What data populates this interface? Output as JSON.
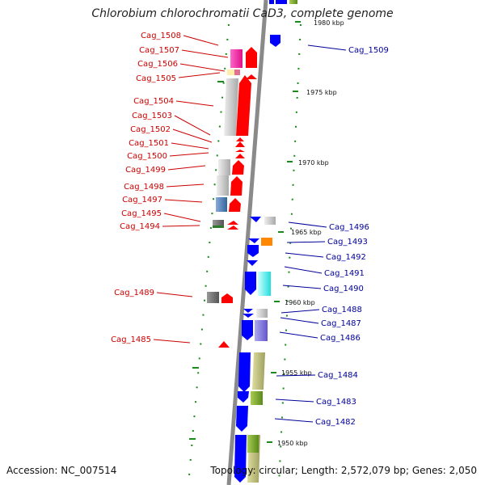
{
  "title": "Chlorobium chlorochromatii CaD3, complete genome",
  "footer": {
    "accession": "Accession: NC_007514",
    "summary": "Topology: circular; Length: 2,572,079 bp; Genes: 2,050"
  },
  "ticks": [
    "1980 kbp",
    "1975 kbp",
    "1970 kbp",
    "1965 kbp",
    "1960 kbp",
    "1955 kbp",
    "1950 kbp"
  ],
  "left_labels": [
    "Cag_1508",
    "Cag_1507",
    "Cag_1506",
    "Cag_1505",
    "Cag_1504",
    "Cag_1503",
    "Cag_1502",
    "Cag_1501",
    "Cag_1500",
    "Cag_1499",
    "Cag_1498",
    "Cag_1497",
    "Cag_1495",
    "Cag_1494",
    "Cag_1489",
    "Cag_1485"
  ],
  "right_labels": [
    "Cag_1509",
    "Cag_1496",
    "Cag_1493",
    "Cag_1492",
    "Cag_1491",
    "Cag_1490",
    "Cag_1488",
    "Cag_1487",
    "Cag_1486",
    "Cag_1484",
    "Cag_1483",
    "Cag_1482"
  ],
  "colors": {
    "forward_cds": "#ff0000",
    "reverse_cds": "#0000ff",
    "left_label": "#cc0000",
    "right_label": "#000099",
    "backbone": "#8a8a8a",
    "tick": "#1a8a1a"
  }
}
